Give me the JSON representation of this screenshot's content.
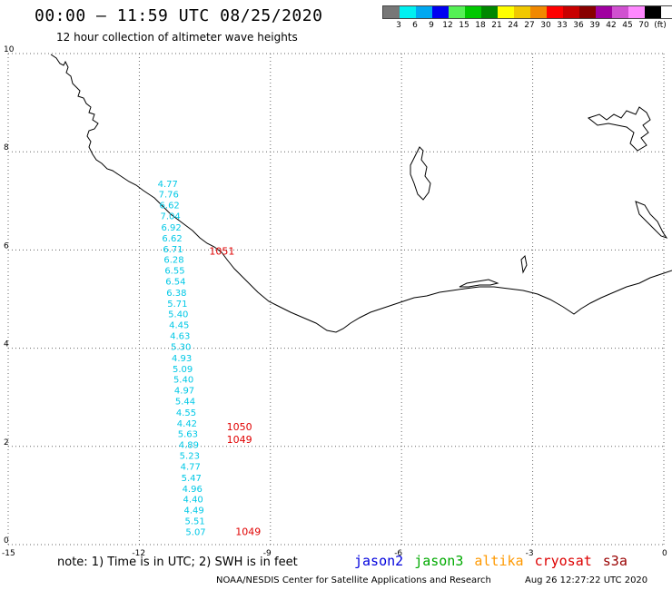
{
  "header": {
    "title": "00:00 — 11:59 UTC 08/25/2020",
    "subtitle": "12 hour collection of altimeter wave heights"
  },
  "legend": {
    "colors": [
      "#777777",
      "#00f0f0",
      "#00a8f0",
      "#0000f0",
      "#55f055",
      "#00c800",
      "#008800",
      "#ffff00",
      "#f0c800",
      "#f08800",
      "#ff0000",
      "#c80000",
      "#880000",
      "#a000a0",
      "#d050d0",
      "#ff88ff",
      "#000000"
    ],
    "labels": [
      "3",
      "6",
      "9",
      "12",
      "15",
      "18",
      "21",
      "24",
      "27",
      "30",
      "33",
      "36",
      "39",
      "42",
      "45",
      "70",
      "(ft)"
    ]
  },
  "axes": {
    "x_ticks": [
      "-15",
      "-12",
      "-9",
      "-6",
      "-3",
      "0"
    ],
    "y_ticks": [
      "0",
      "2",
      "4",
      "6",
      "8",
      "10"
    ]
  },
  "chart_data": {
    "type": "scatter",
    "title": "00:00 — 11:59 UTC 08/25/2020",
    "subtitle": "12 hour collection of altimeter wave heights",
    "xlim": [
      -15,
      0
    ],
    "ylim": [
      0,
      10
    ],
    "grid": true,
    "series": [
      {
        "name": "jason3",
        "color": "#00c8e6",
        "points": [
          {
            "x": -11.58,
            "y": 7.36,
            "label": "4.77"
          },
          {
            "x": -11.56,
            "y": 7.14,
            "label": "7.76"
          },
          {
            "x": -11.54,
            "y": 6.92,
            "label": "6.62"
          },
          {
            "x": -11.52,
            "y": 6.7,
            "label": "7.04"
          },
          {
            "x": -11.5,
            "y": 6.47,
            "label": "6.92"
          },
          {
            "x": -11.48,
            "y": 6.25,
            "label": "6.62"
          },
          {
            "x": -11.46,
            "y": 6.03,
            "label": "6.71"
          },
          {
            "x": -11.44,
            "y": 5.81,
            "label": "6.28"
          },
          {
            "x": -11.42,
            "y": 5.59,
            "label": "6.55"
          },
          {
            "x": -11.4,
            "y": 5.37,
            "label": "6.54"
          },
          {
            "x": -11.38,
            "y": 5.14,
            "label": "6.38"
          },
          {
            "x": -11.36,
            "y": 4.92,
            "label": "5.71"
          },
          {
            "x": -11.34,
            "y": 4.7,
            "label": "5.40"
          },
          {
            "x": -11.32,
            "y": 4.48,
            "label": "4.45"
          },
          {
            "x": -11.3,
            "y": 4.26,
            "label": "4.63"
          },
          {
            "x": -11.28,
            "y": 4.04,
            "label": "5.30"
          },
          {
            "x": -11.26,
            "y": 3.81,
            "label": "4.93"
          },
          {
            "x": -11.24,
            "y": 3.59,
            "label": "5.09"
          },
          {
            "x": -11.22,
            "y": 3.37,
            "label": "5.40"
          },
          {
            "x": -11.2,
            "y": 3.15,
            "label": "4.97"
          },
          {
            "x": -11.18,
            "y": 2.93,
            "label": "5.44"
          },
          {
            "x": -11.16,
            "y": 2.7,
            "label": "4.55"
          },
          {
            "x": -11.14,
            "y": 2.48,
            "label": "4.42"
          },
          {
            "x": -11.12,
            "y": 2.26,
            "label": "5.63"
          },
          {
            "x": -11.1,
            "y": 2.04,
            "label": "4.89"
          },
          {
            "x": -11.08,
            "y": 1.82,
            "label": "5.23"
          },
          {
            "x": -11.06,
            "y": 1.6,
            "label": "4.77"
          },
          {
            "x": -11.04,
            "y": 1.37,
            "label": "5.47"
          },
          {
            "x": -11.02,
            "y": 1.15,
            "label": "4.96"
          },
          {
            "x": -11.0,
            "y": 0.93,
            "label": "4.40"
          },
          {
            "x": -10.98,
            "y": 0.71,
            "label": "4.49"
          },
          {
            "x": -10.96,
            "y": 0.49,
            "label": "5.51"
          },
          {
            "x": -10.94,
            "y": 0.27,
            "label": "5.07"
          }
        ]
      },
      {
        "name": "cryosat",
        "color": "#e00000",
        "points": [
          {
            "x": -10.4,
            "y": 5.98,
            "label": "1051"
          },
          {
            "x": -10.0,
            "y": 2.4,
            "label": "1050"
          },
          {
            "x": -10.0,
            "y": 2.14,
            "label": "1049"
          },
          {
            "x": -9.8,
            "y": 0.27,
            "label": "1049"
          }
        ]
      }
    ]
  },
  "notes": {
    "note": "note:  1) Time is in UTC;  2) SWH is in feet",
    "satellites": [
      {
        "name": "jason2",
        "color": "#0000dd"
      },
      {
        "name": "jason3",
        "color": "#00aa00"
      },
      {
        "name": "altika",
        "color": "#ff9900"
      },
      {
        "name": "cryosat",
        "color": "#dd0000"
      },
      {
        "name": "s3a",
        "color": "#990000"
      }
    ]
  },
  "footer": {
    "credit": "NOAA/NESDIS Center for Satellite Applications and Research",
    "timestamp": "Aug 26 12:27:22 UTC 2020"
  }
}
